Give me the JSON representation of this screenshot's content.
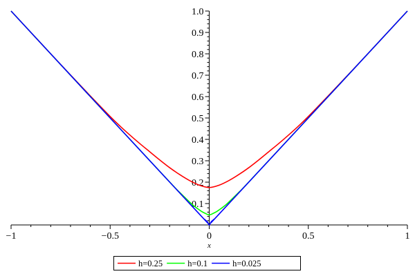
{
  "chart_data": {
    "type": "line",
    "title": "",
    "xlabel": "x",
    "ylabel": "",
    "xlim": [
      -1,
      1
    ],
    "ylim": [
      0,
      1
    ],
    "x_ticks": [
      -1,
      -0.5,
      0,
      0.5,
      1
    ],
    "x_tick_labels": [
      "−1",
      "−0.5",
      "0",
      "0.5",
      "1"
    ],
    "y_ticks": [
      0.1,
      0.2,
      0.3,
      0.4,
      0.5,
      0.6,
      0.7,
      0.8,
      0.9,
      1.0
    ],
    "y_tick_labels": [
      "0.1",
      "0.2",
      "0.3",
      "0.4",
      "0.5",
      "0.6",
      "0.7",
      "0.8",
      "0.9",
      "1.0"
    ],
    "grid": false,
    "legend_position": "bottom",
    "series": [
      {
        "name": "h=0.25",
        "color": "#ff0000",
        "points": [
          [
            -1,
            1.0
          ],
          [
            -0.9,
            0.9
          ],
          [
            -0.8,
            0.8
          ],
          [
            -0.7,
            0.701
          ],
          [
            -0.6,
            0.603
          ],
          [
            -0.5,
            0.507
          ],
          [
            -0.45,
            0.462
          ],
          [
            -0.4,
            0.42
          ],
          [
            -0.35,
            0.38
          ],
          [
            -0.3,
            0.342
          ],
          [
            -0.25,
            0.304
          ],
          [
            -0.2,
            0.268
          ],
          [
            -0.15,
            0.236
          ],
          [
            -0.1,
            0.208
          ],
          [
            -0.05,
            0.186
          ],
          [
            0,
            0.175
          ],
          [
            0.05,
            0.186
          ],
          [
            0.1,
            0.208
          ],
          [
            0.15,
            0.236
          ],
          [
            0.2,
            0.268
          ],
          [
            0.25,
            0.304
          ],
          [
            0.3,
            0.342
          ],
          [
            0.35,
            0.38
          ],
          [
            0.4,
            0.42
          ],
          [
            0.45,
            0.462
          ],
          [
            0.5,
            0.507
          ],
          [
            0.6,
            0.603
          ],
          [
            0.7,
            0.701
          ],
          [
            0.8,
            0.8
          ],
          [
            0.9,
            0.9
          ],
          [
            1,
            1.0
          ]
        ]
      },
      {
        "name": "h=0.1",
        "color": "#00ff00",
        "points": [
          [
            -1,
            1.0
          ],
          [
            -0.5,
            0.5
          ],
          [
            -0.2,
            0.201
          ],
          [
            -0.15,
            0.153
          ],
          [
            -0.1,
            0.108
          ],
          [
            -0.08,
            0.091
          ],
          [
            -0.06,
            0.077
          ],
          [
            -0.04,
            0.064
          ],
          [
            -0.02,
            0.054
          ],
          [
            0,
            0.047
          ],
          [
            0.02,
            0.054
          ],
          [
            0.04,
            0.064
          ],
          [
            0.06,
            0.077
          ],
          [
            0.08,
            0.091
          ],
          [
            0.1,
            0.108
          ],
          [
            0.15,
            0.153
          ],
          [
            0.2,
            0.201
          ],
          [
            0.5,
            0.5
          ],
          [
            1,
            1.0
          ]
        ]
      },
      {
        "name": "h=0.025",
        "color": "#0000ff",
        "points": [
          [
            -1,
            1.0
          ],
          [
            -0.5,
            0.5
          ],
          [
            -0.05,
            0.051
          ],
          [
            -0.025,
            0.027
          ],
          [
            -0.01,
            0.015
          ],
          [
            0,
            0.0
          ],
          [
            0.01,
            0.015
          ],
          [
            0.025,
            0.027
          ],
          [
            0.05,
            0.051
          ],
          [
            0.5,
            0.5
          ],
          [
            1,
            1.0
          ]
        ]
      }
    ]
  }
}
